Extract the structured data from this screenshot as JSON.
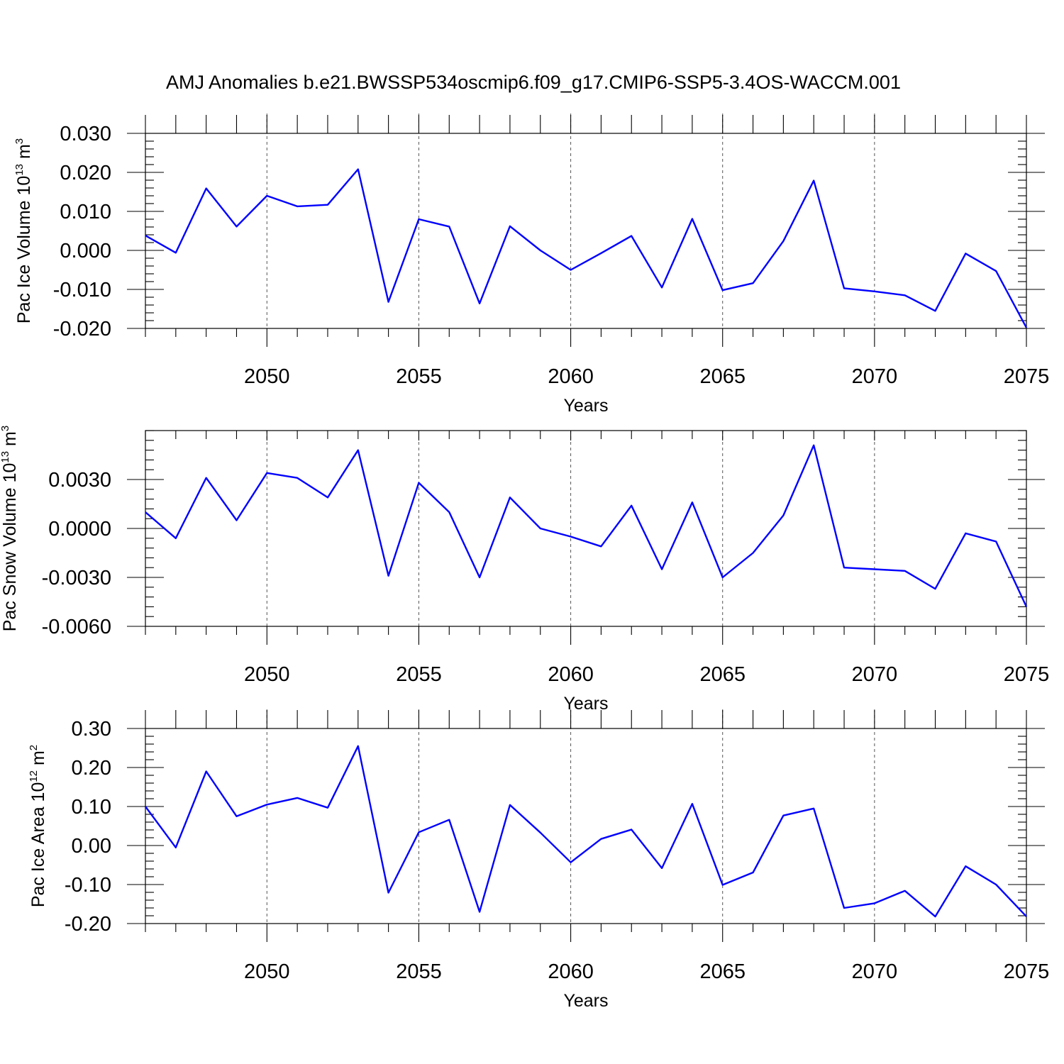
{
  "title": "AMJ Anomalies b.e21.BWSSP534oscmip6.f09_g17.CMIP6-SSP5-3.4OS-WACCM.001",
  "colors": {
    "line": "#0000ff",
    "axes": "#000000",
    "grid": "#555555"
  },
  "chart_data": [
    {
      "type": "line",
      "xlabel": "Years",
      "ylabel": {
        "main": "Pac Ice Volume 10",
        "sup1": "13",
        "unit": " m",
        "sup2": "3"
      },
      "xlim": [
        2046,
        2075
      ],
      "ylim": [
        -0.02,
        0.03
      ],
      "xticks": [
        2050,
        2055,
        2060,
        2065,
        2070,
        2075
      ],
      "yticks": [
        -0.02,
        -0.01,
        0.0,
        0.01,
        0.02,
        0.03
      ],
      "ytick_labels": [
        "-0.020",
        "-0.010",
        "0.000",
        "0.010",
        "0.020",
        "0.030"
      ],
      "grid": "vertical dashed at major x ticks",
      "x": [
        2046,
        2047,
        2048,
        2049,
        2050,
        2051,
        2052,
        2053,
        2054,
        2055,
        2056,
        2057,
        2058,
        2059,
        2060,
        2061,
        2062,
        2063,
        2064,
        2065,
        2066,
        2067,
        2068,
        2069,
        2070,
        2071,
        2072,
        2073,
        2074,
        2075
      ],
      "y": [
        0.0038,
        -0.0006,
        0.0159,
        0.0061,
        0.014,
        0.0113,
        0.0117,
        0.0208,
        -0.0132,
        0.008,
        0.0061,
        -0.0136,
        0.0062,
        0.0,
        -0.005,
        -0.0007,
        0.0037,
        -0.0095,
        0.0081,
        -0.0102,
        -0.0084,
        0.0024,
        0.0179,
        -0.0097,
        -0.0105,
        -0.0115,
        -0.0155,
        -0.0008,
        -0.0053,
        -0.0198
      ]
    },
    {
      "type": "line",
      "xlabel": "Years",
      "ylabel": {
        "main": "Pac Snow Volume 10",
        "sup1": "13",
        "unit": " m",
        "sup2": "3"
      },
      "xlim": [
        2046,
        2075
      ],
      "ylim": [
        -0.006,
        0.006
      ],
      "xticks": [
        2050,
        2055,
        2060,
        2065,
        2070,
        2075
      ],
      "yticks": [
        -0.006,
        -0.003,
        0.0,
        0.003
      ],
      "ytick_labels": [
        "-0.0060",
        "-0.0030",
        "0.0000",
        "0.0030"
      ],
      "grid": "vertical dashed at major x ticks",
      "x": [
        2046,
        2047,
        2048,
        2049,
        2050,
        2051,
        2052,
        2053,
        2054,
        2055,
        2056,
        2057,
        2058,
        2059,
        2060,
        2061,
        2062,
        2063,
        2064,
        2065,
        2066,
        2067,
        2068,
        2069,
        2070,
        2071,
        2072,
        2073,
        2074,
        2075
      ],
      "y": [
        0.001,
        -0.0006,
        0.0031,
        0.0005,
        0.0034,
        0.0031,
        0.0019,
        0.0048,
        -0.0029,
        0.0028,
        0.001,
        -0.003,
        0.0019,
        0.0,
        -0.0005,
        -0.0011,
        0.0014,
        -0.0025,
        0.0016,
        -0.003,
        -0.0015,
        0.0008,
        0.0051,
        -0.0024,
        -0.0025,
        -0.0026,
        -0.0037,
        -0.0003,
        -0.0008,
        -0.0048
      ]
    },
    {
      "type": "line",
      "xlabel": "Years",
      "ylabel": {
        "main": "Pac Ice Area 10",
        "sup1": "12",
        "unit": " m",
        "sup2": "2"
      },
      "xlim": [
        2046,
        2075
      ],
      "ylim": [
        -0.2,
        0.3
      ],
      "xticks": [
        2050,
        2055,
        2060,
        2065,
        2070,
        2075
      ],
      "yticks": [
        -0.2,
        -0.1,
        0.0,
        0.1,
        0.2,
        0.3
      ],
      "ytick_labels": [
        "-0.20",
        "-0.10",
        "0.00",
        "0.10",
        "0.20",
        "0.30"
      ],
      "grid": "vertical dashed at major x ticks",
      "x": [
        2046,
        2047,
        2048,
        2049,
        2050,
        2051,
        2052,
        2053,
        2054,
        2055,
        2056,
        2057,
        2058,
        2059,
        2060,
        2061,
        2062,
        2063,
        2064,
        2065,
        2066,
        2067,
        2068,
        2069,
        2070,
        2071,
        2072,
        2073,
        2074,
        2075
      ],
      "y": [
        0.1,
        -0.005,
        0.19,
        0.075,
        0.105,
        0.122,
        0.097,
        0.255,
        -0.121,
        0.034,
        0.066,
        -0.17,
        0.104,
        0.033,
        -0.043,
        0.017,
        0.041,
        -0.058,
        0.107,
        -0.101,
        -0.069,
        0.077,
        0.095,
        -0.16,
        -0.148,
        -0.116,
        -0.182,
        -0.053,
        -0.1,
        -0.182
      ]
    }
  ]
}
